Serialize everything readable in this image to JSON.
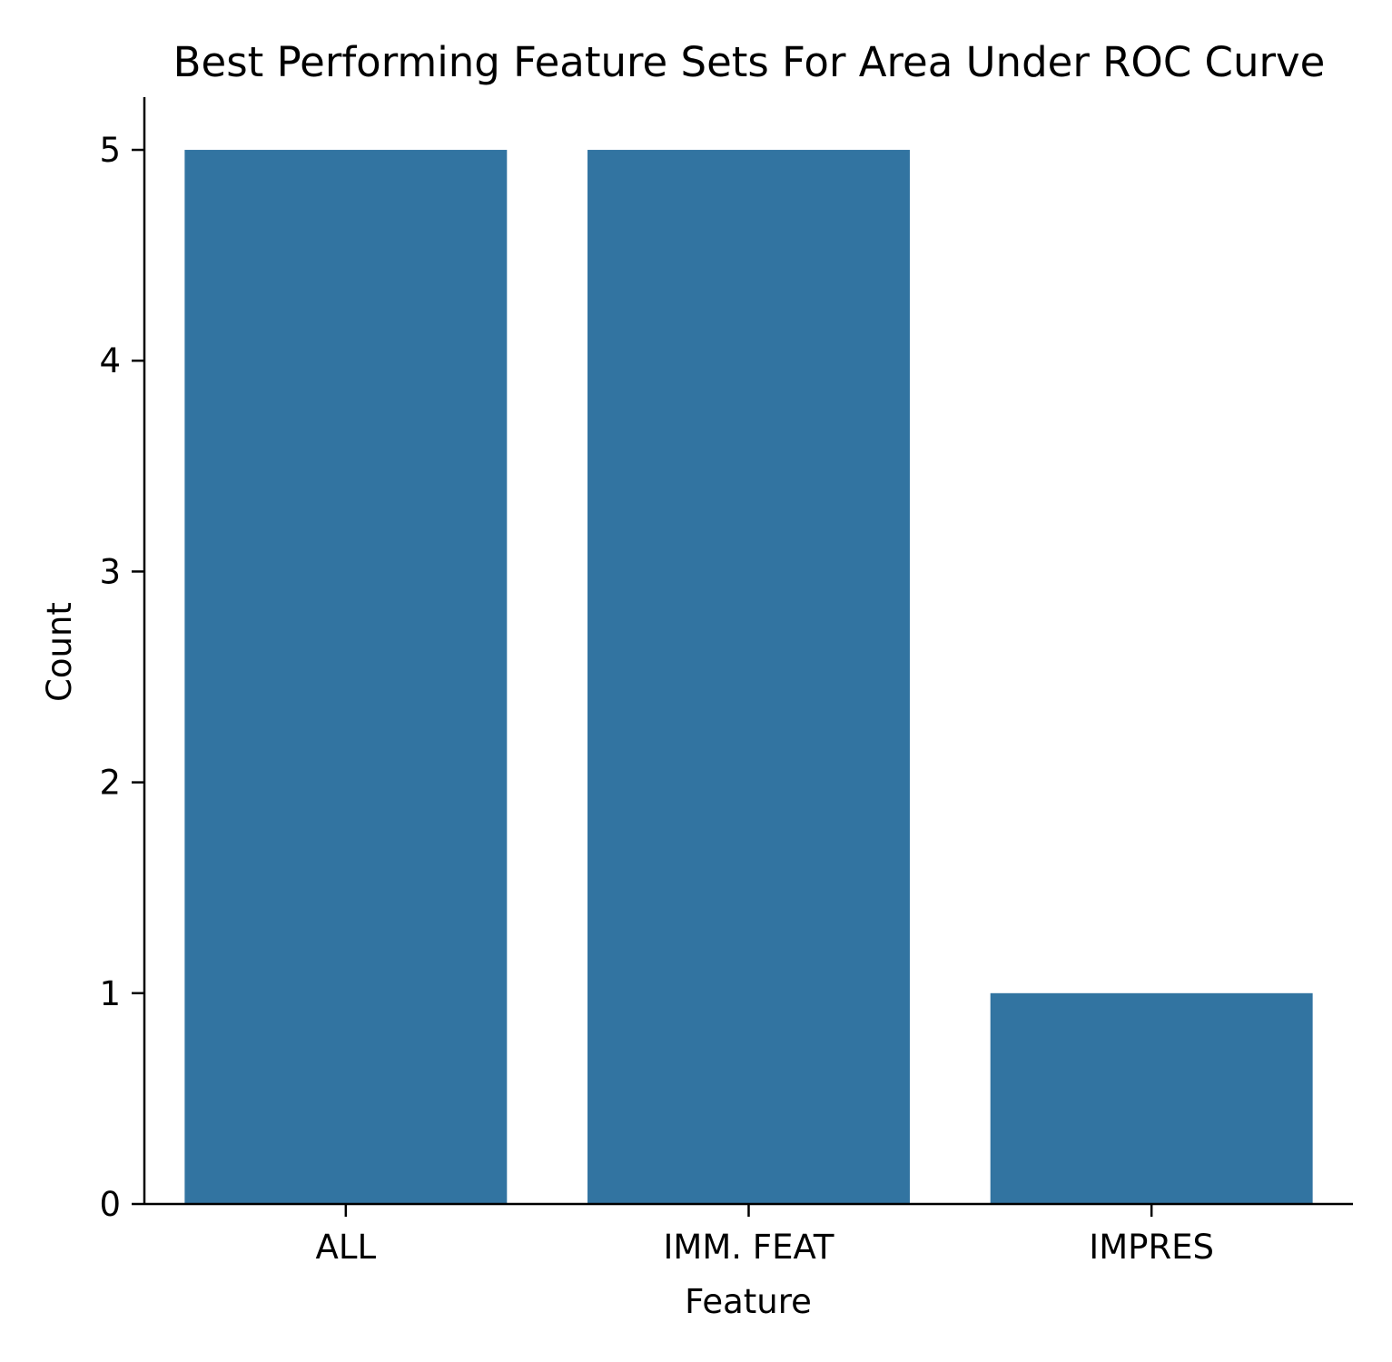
{
  "chart_data": {
    "type": "bar",
    "title": "Best Performing Feature Sets For Area Under ROC Curve",
    "xlabel": "Feature",
    "ylabel": "Count",
    "categories": [
      "ALL",
      "IMM. FEAT",
      "IMPRES"
    ],
    "values": [
      5,
      5,
      1
    ],
    "ylim": [
      0,
      5.25
    ],
    "yticks": [
      0,
      1,
      2,
      3,
      4,
      5
    ],
    "bar_color": "#3274a1",
    "grid": false,
    "legend": "none"
  }
}
